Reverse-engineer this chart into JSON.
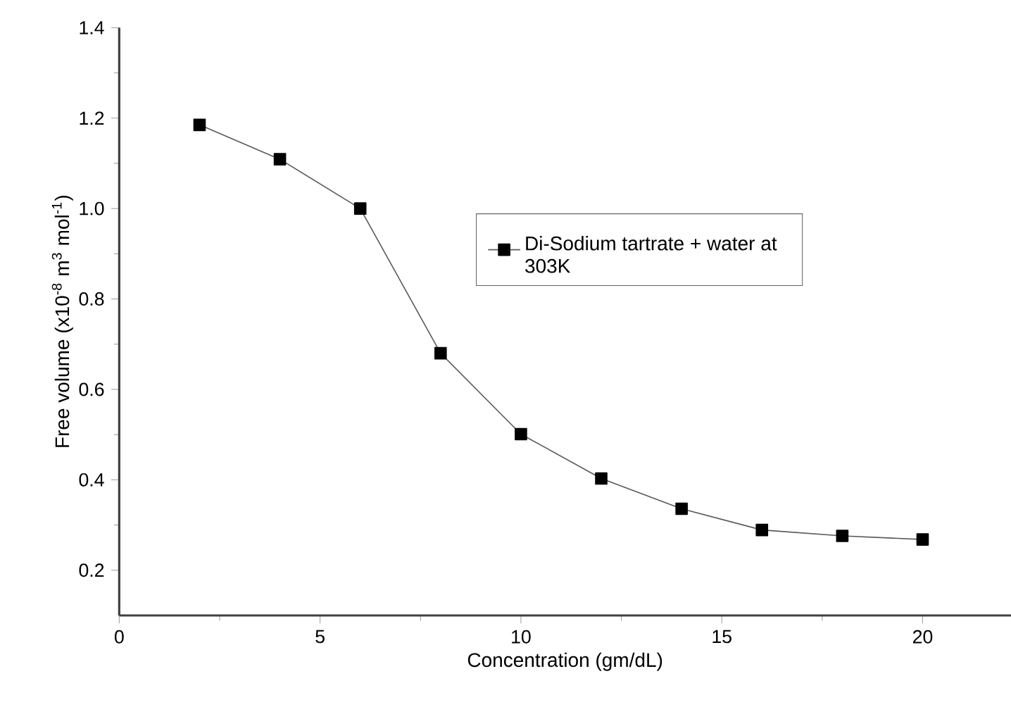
{
  "chart_data": {
    "type": "line",
    "xlabel": "Concentration (gm/dL)",
    "ylabel": "Free volume (x10$^{-8}$ m$^{3}$ mol$^{-1}$)",
    "x": [
      2,
      4,
      6,
      8,
      10,
      12,
      14,
      16,
      18,
      20
    ],
    "series": [
      {
        "name": "Di-Sodium tartrate + water at 303K",
        "color": "#000000",
        "values": [
          1.185,
          1.109,
          1.0,
          0.68,
          0.501,
          0.403,
          0.336,
          0.289,
          0.276,
          0.268
        ]
      }
    ],
    "xlim": [
      0,
      22.2
    ],
    "ylim": [
      0.1,
      1.4
    ],
    "xticks": [
      0,
      5,
      10,
      15,
      20
    ],
    "yticks": [
      0.2,
      0.4,
      0.6,
      0.8,
      {
        "value": 1.0,
        "label": "1.0"
      },
      1.2,
      1.4
    ],
    "legend": "right",
    "marker": "square",
    "line_style": "solid"
  }
}
